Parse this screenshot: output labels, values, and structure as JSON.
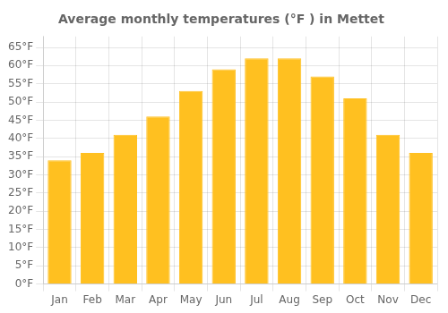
{
  "chart_data": {
    "type": "bar",
    "title": "Average monthly temperatures (°F ) in Mettet",
    "categories": [
      "Jan",
      "Feb",
      "Mar",
      "Apr",
      "May",
      "Jun",
      "Jul",
      "Aug",
      "Sep",
      "Oct",
      "Nov",
      "Dec"
    ],
    "values": [
      34,
      36,
      41,
      46,
      53,
      59,
      62,
      62,
      57,
      51,
      41,
      36
    ],
    "color": "#FFC020",
    "ylim": [
      0,
      68
    ],
    "yticks": [
      {
        "value": 0,
        "label": "0°F"
      },
      {
        "value": 5,
        "label": "5°F"
      },
      {
        "value": 10,
        "label": "10°F"
      },
      {
        "value": 15,
        "label": "15°F"
      },
      {
        "value": 20,
        "label": "20°F"
      },
      {
        "value": 25,
        "label": "25°F"
      },
      {
        "value": 30,
        "label": "30°F"
      },
      {
        "value": 35,
        "label": "35°F"
      },
      {
        "value": 40,
        "label": "40°F"
      },
      {
        "value": 45,
        "label": "45°F"
      },
      {
        "value": 50,
        "label": "50°F"
      },
      {
        "value": 55,
        "label": "55°F"
      },
      {
        "value": 60,
        "label": "60°F"
      },
      {
        "value": 65,
        "label": "65°F"
      }
    ],
    "grid": true
  }
}
